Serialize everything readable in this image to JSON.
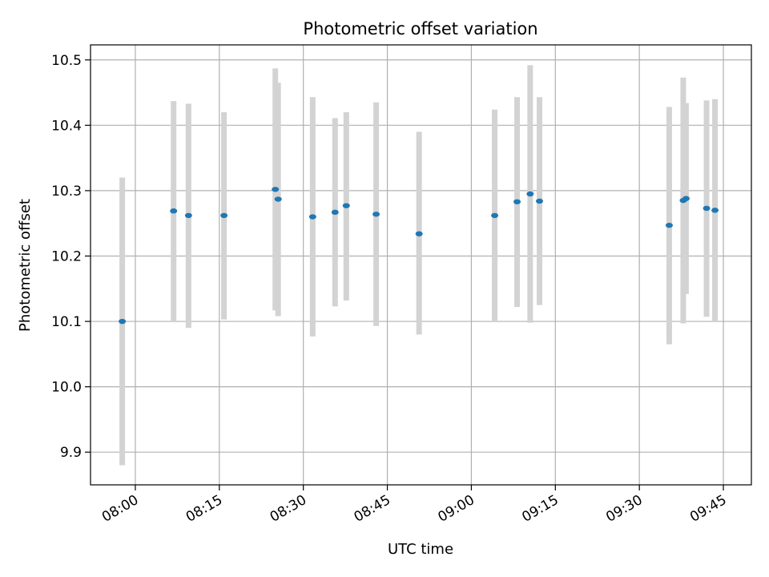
{
  "chart_data": {
    "type": "scatter",
    "title": "Photometric offset variation",
    "xlabel": "UTC time",
    "ylabel": "Photometric offset",
    "xlim": [
      "07:52",
      "09:50"
    ],
    "ylim": [
      9.85,
      10.523
    ],
    "x_ticks": [
      "08:00",
      "08:15",
      "08:30",
      "08:45",
      "09:00",
      "09:15",
      "09:30",
      "09:45"
    ],
    "y_ticks": [
      9.9,
      10.0,
      10.1,
      10.2,
      10.3,
      10.4,
      10.5
    ],
    "grid": true,
    "colors": {
      "point": "#1f77b4",
      "errorbar": "#d3d3d3",
      "grid": "#b0b0b0"
    },
    "points": [
      {
        "x": "07:57:40",
        "y": 10.1,
        "low": 9.88,
        "high": 10.32
      },
      {
        "x": "08:06:50",
        "y": 10.269,
        "low": 10.1,
        "high": 10.437
      },
      {
        "x": "08:09:30",
        "y": 10.262,
        "low": 10.09,
        "high": 10.433
      },
      {
        "x": "08:15:50",
        "y": 10.262,
        "low": 10.103,
        "high": 10.42
      },
      {
        "x": "08:25:00",
        "y": 10.302,
        "low": 10.117,
        "high": 10.487
      },
      {
        "x": "08:25:30",
        "y": 10.287,
        "low": 10.108,
        "high": 10.465
      },
      {
        "x": "08:31:40",
        "y": 10.26,
        "low": 10.077,
        "high": 10.443
      },
      {
        "x": "08:35:40",
        "y": 10.267,
        "low": 10.123,
        "high": 10.411
      },
      {
        "x": "08:37:40",
        "y": 10.277,
        "low": 10.132,
        "high": 10.42
      },
      {
        "x": "08:43:00",
        "y": 10.264,
        "low": 10.093,
        "high": 10.435
      },
      {
        "x": "08:50:40",
        "y": 10.234,
        "low": 10.08,
        "high": 10.39
      },
      {
        "x": "09:04:10",
        "y": 10.262,
        "low": 10.1,
        "high": 10.424
      },
      {
        "x": "09:08:10",
        "y": 10.283,
        "low": 10.122,
        "high": 10.443
      },
      {
        "x": "09:10:30",
        "y": 10.295,
        "low": 10.098,
        "high": 10.492
      },
      {
        "x": "09:12:10",
        "y": 10.284,
        "low": 10.125,
        "high": 10.443
      },
      {
        "x": "09:35:20",
        "y": 10.247,
        "low": 10.065,
        "high": 10.428
      },
      {
        "x": "09:37:50",
        "y": 10.285,
        "low": 10.097,
        "high": 10.473
      },
      {
        "x": "09:38:20",
        "y": 10.288,
        "low": 10.142,
        "high": 10.434
      },
      {
        "x": "09:42:00",
        "y": 10.273,
        "low": 10.107,
        "high": 10.438
      },
      {
        "x": "09:43:30",
        "y": 10.27,
        "low": 10.1,
        "high": 10.44
      }
    ]
  }
}
